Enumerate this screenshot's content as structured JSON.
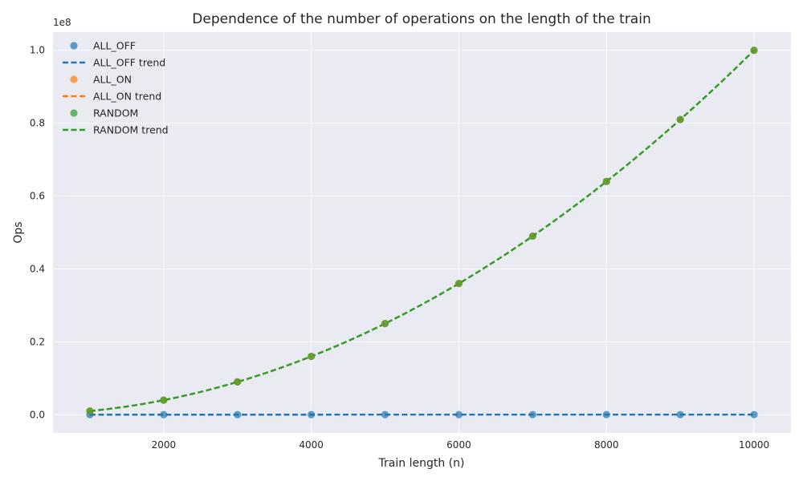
{
  "chart_data": {
    "type": "scatter",
    "title": "Dependence of the number of operations on the length of the train",
    "xlabel": "Train length (n)",
    "ylabel": "Ops",
    "y_offset_text": "1e8",
    "y_multiplier": 100000000,
    "xlim": [
      500,
      10500
    ],
    "ylim": [
      -5000000,
      105000000
    ],
    "xticks": [
      2000,
      4000,
      6000,
      8000,
      10000
    ],
    "xtick_labels": [
      "2000",
      "4000",
      "6000",
      "8000",
      "10000"
    ],
    "yticks": [
      0,
      20000000,
      40000000,
      60000000,
      80000000,
      100000000
    ],
    "ytick_labels": [
      "0.0",
      "0.2",
      "0.4",
      "0.6",
      "0.8",
      "1.0"
    ],
    "grid": true,
    "legend_position": "top-left",
    "series": [
      {
        "name": "ALL_OFF",
        "trend_name": "ALL_OFF trend",
        "color": "#1f77b4",
        "x": [
          1000,
          2000,
          3000,
          4000,
          5000,
          6000,
          7000,
          8000,
          9000,
          10000
        ],
        "y": [
          2000,
          4000,
          6000,
          8000,
          10000,
          12000,
          14000,
          16000,
          18000,
          20000
        ]
      },
      {
        "name": "ALL_ON",
        "trend_name": "ALL_ON trend",
        "color": "#ff7f0e",
        "x": [
          1000,
          2000,
          3000,
          4000,
          5000,
          6000,
          7000,
          8000,
          9000,
          10000
        ],
        "y": [
          1000000,
          4000000,
          9000000,
          16000000,
          25000000,
          36000000,
          49000000,
          64000000,
          81000000,
          100000000
        ]
      },
      {
        "name": "RANDOM",
        "trend_name": "RANDOM trend",
        "color": "#2ca02c",
        "x": [
          1000,
          2000,
          3000,
          4000,
          5000,
          6000,
          7000,
          8000,
          9000,
          10000
        ],
        "y": [
          1000000,
          4000000,
          9000000,
          16000000,
          25000000,
          36000000,
          49000000,
          64000000,
          81000000,
          100000000
        ]
      }
    ]
  }
}
